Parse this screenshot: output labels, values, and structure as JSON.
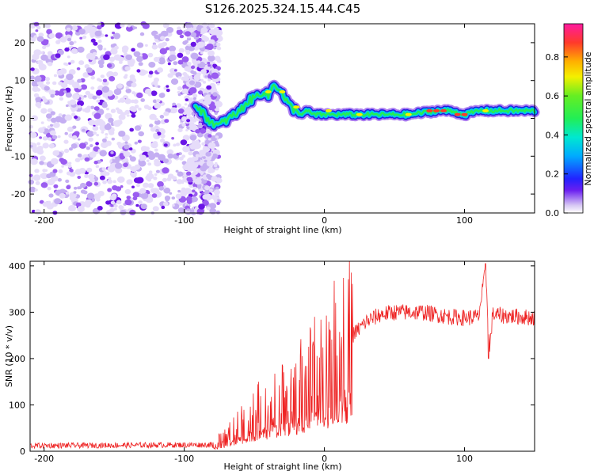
{
  "title": "S126.2025.324.15.44.C45",
  "colors": {
    "axis": "#000000",
    "snr_line": "#ee2222",
    "purple_noise": "#8a2be2",
    "background": "#ffffff"
  },
  "chart_data": [
    {
      "type": "heatmap",
      "xlabel": "Height of straight line (km)",
      "ylabel": "Frequency (Hz)",
      "xlim": [
        -210,
        150
      ],
      "ylim": [
        -25,
        25
      ],
      "xticks": [
        -200,
        -100,
        0,
        100
      ],
      "yticks": [
        -20,
        -10,
        0,
        10,
        20
      ],
      "noise_region_x": [
        -210,
        -75
      ],
      "ridge": {
        "x": [
          -92,
          -88,
          -84,
          -80,
          -76,
          -72,
          -68,
          -64,
          -60,
          -56,
          -52,
          -48,
          -44,
          -40,
          -36,
          -32,
          -28,
          -24,
          -20,
          -16,
          -12,
          -8,
          -4,
          0,
          10,
          20,
          40,
          60,
          80,
          90,
          100,
          110,
          120,
          150
        ],
        "y": [
          4,
          2,
          0,
          -1,
          -2,
          -1,
          0,
          1,
          2,
          4,
          5,
          6,
          7,
          6,
          9,
          8,
          5,
          3,
          2,
          1,
          2,
          1,
          1,
          1,
          1,
          1,
          1,
          1,
          2,
          2,
          1,
          2,
          2,
          2
        ]
      }
    },
    {
      "type": "line",
      "xlabel": "Height of straight line (km)",
      "ylabel": "SNR (10 * v/v)",
      "xlim": [
        -210,
        150
      ],
      "ylim": [
        0,
        410
      ],
      "xticks": [
        -200,
        -100,
        0,
        100
      ],
      "yticks": [
        0,
        100,
        200,
        300,
        400
      ],
      "envelope": {
        "x": [
          -210,
          -80,
          -70,
          -60,
          -50,
          -40,
          -30,
          -20,
          -10,
          0,
          10,
          20,
          30,
          40,
          50,
          60,
          70,
          80,
          90,
          100,
          110,
          115,
          118,
          120,
          130,
          140,
          150
        ],
        "y": [
          12,
          14,
          30,
          60,
          80,
          100,
          110,
          130,
          160,
          190,
          220,
          250,
          280,
          295,
          300,
          300,
          300,
          295,
          290,
          288,
          290,
          390,
          220,
          295,
          292,
          290,
          288
        ]
      },
      "spikes": [
        {
          "x": 115,
          "y": 405
        },
        {
          "x": 117,
          "y": 200
        }
      ]
    }
  ]
}
